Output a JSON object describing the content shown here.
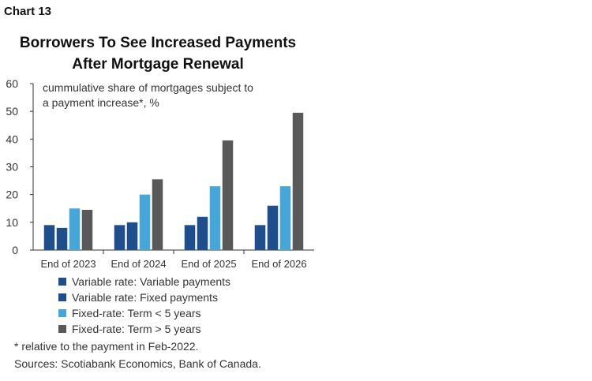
{
  "header": {
    "chart_label": "Chart 13",
    "title_line1": "Borrowers To See Increased Payments",
    "title_line2": "After Mortgage Renewal"
  },
  "chart_data": {
    "type": "bar",
    "subtitle_line1": "cummulative share of mortgages subject to",
    "subtitle_line2": "a payment increase*, %",
    "categories": [
      "End of 2023",
      "End of 2024",
      "End of 2025",
      "End of 2026"
    ],
    "y_ticks": [
      "0",
      "10",
      "20",
      "30",
      "40",
      "50",
      "60"
    ],
    "ylim": [
      0,
      60
    ],
    "series": [
      {
        "name": "Variable rate: Variable payments",
        "color": "#1f4e8c",
        "values": [
          9,
          9,
          9,
          9
        ]
      },
      {
        "name": "Variable rate: Fixed payments",
        "color": "#1f4e8c",
        "values": [
          8,
          10,
          12,
          16
        ]
      },
      {
        "name": "Fixed-rate: Term < 5 years",
        "color": "#46a6d8",
        "values": [
          15,
          20,
          23,
          23
        ]
      },
      {
        "name": "Fixed-rate: Term > 5 years",
        "color": "#595959",
        "values": [
          14.5,
          25.5,
          39.5,
          49.5
        ]
      }
    ],
    "legend_position": "bottom",
    "grid": false
  },
  "footer": {
    "footnote": "* relative to the payment in Feb-2022.",
    "sources": "Sources: Scotiabank Economics, Bank of Canada."
  }
}
